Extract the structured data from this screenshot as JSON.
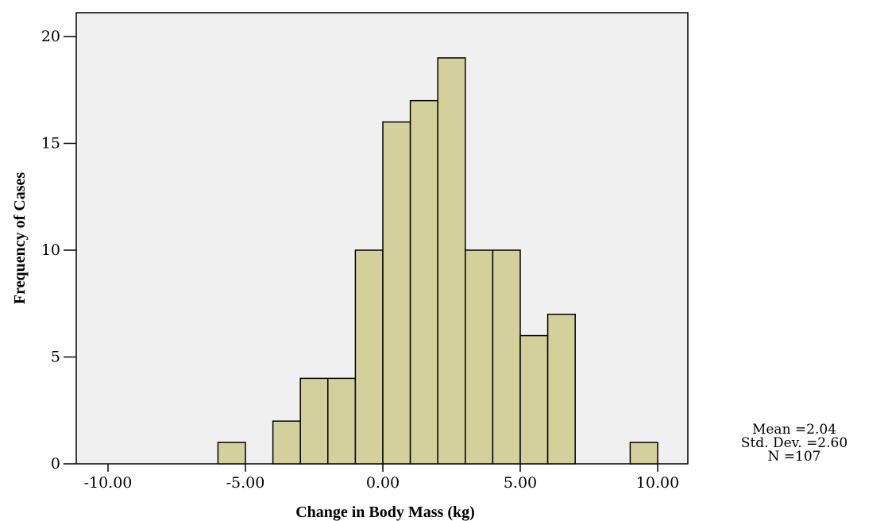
{
  "chart_data": {
    "type": "bar",
    "title": "",
    "xlabel": "Change in Body Mass (kg)",
    "ylabel": "Frequency of Cases",
    "bin_width": 1,
    "bins": [
      {
        "x0": -6,
        "x1": -5,
        "count": 1
      },
      {
        "x0": -4,
        "x1": -3,
        "count": 2
      },
      {
        "x0": -3,
        "x1": -2,
        "count": 4
      },
      {
        "x0": -2,
        "x1": -1,
        "count": 4
      },
      {
        "x0": -1,
        "x1": 0,
        "count": 10
      },
      {
        "x0": 0,
        "x1": 1,
        "count": 16
      },
      {
        "x0": 1,
        "x1": 2,
        "count": 17
      },
      {
        "x0": 2,
        "x1": 3,
        "count": 19
      },
      {
        "x0": 3,
        "x1": 4,
        "count": 10
      },
      {
        "x0": 4,
        "x1": 5,
        "count": 10
      },
      {
        "x0": 5,
        "x1": 6,
        "count": 6
      },
      {
        "x0": 6,
        "x1": 7,
        "count": 7
      },
      {
        "x0": 9,
        "x1": 10,
        "count": 1
      }
    ],
    "xlim": [
      -11.5,
      11
    ],
    "ylim": [
      0,
      21
    ],
    "x_ticks": [
      -10,
      -5,
      0,
      5,
      10
    ],
    "x_tick_labels": [
      "-10.00",
      "-5.00",
      "0.00",
      "5.00",
      "10.00"
    ],
    "y_ticks": [
      0,
      5,
      10,
      15,
      20
    ],
    "y_tick_labels": [
      "0",
      "5",
      "10",
      "15",
      "20"
    ],
    "grid": false,
    "colors": {
      "bar_fill": "#d4d09b",
      "plot_background": "#f0f0f0",
      "bar_stroke": "#000000"
    }
  },
  "stats": {
    "mean": "Mean =2.04",
    "std_dev": "Std. Dev. =2.60",
    "n": "N =107"
  }
}
